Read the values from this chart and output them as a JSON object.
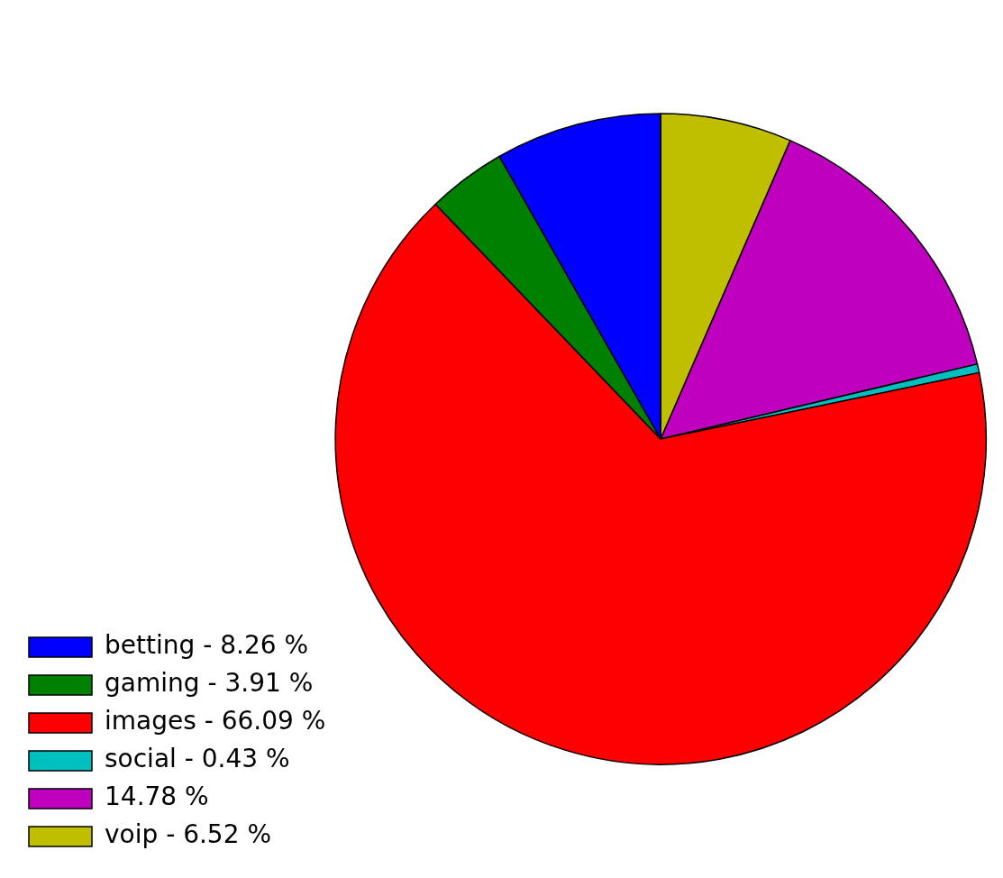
{
  "chart_data": {
    "type": "pie",
    "categories": [
      "betting - 8.26 %",
      "gaming - 3.91 %",
      "images - 66.09 %",
      "social - 0.43 %",
      "14.78 %",
      "voip - 6.52 %"
    ],
    "values": [
      8.26,
      3.91,
      66.09,
      0.43,
      14.78,
      6.52
    ],
    "colors": [
      "#0000ff",
      "#008000",
      "#ff0000",
      "#00bfbf",
      "#bf00bf",
      "#bfbf00"
    ],
    "legend": "bottom left"
  }
}
